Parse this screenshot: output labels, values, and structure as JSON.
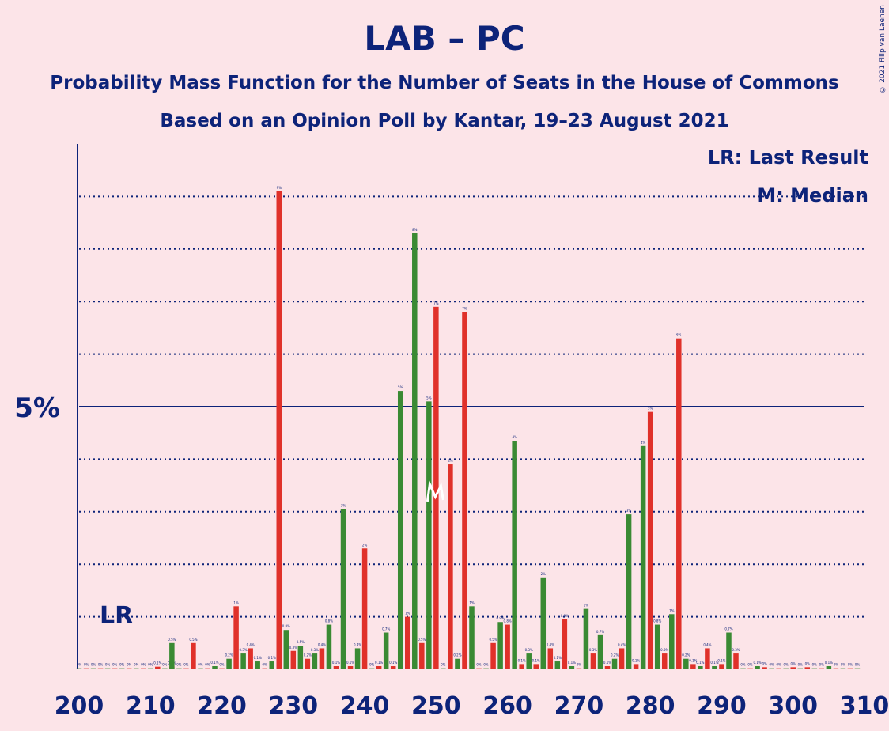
{
  "title": "LAB – PC",
  "subtitle1": "Probability Mass Function for the Number of Seats in the House of Commons",
  "subtitle2": "Based on an Opinion Poll by Kantar, 19–23 August 2021",
  "copyright": "© 2021 Filip van Laenen",
  "legend": {
    "lr": "LR: Last Result",
    "m": "M: Median"
  },
  "colors": {
    "background": "#fce4e8",
    "text": "#0d2379",
    "lab": "#e0312a",
    "pc": "#3a8a33"
  },
  "chart_data": {
    "type": "bar",
    "xlabel": "",
    "ylabel": "",
    "ylim": [
      0,
      9.5
    ],
    "xlim": [
      200,
      310
    ],
    "x_ticks": [
      200,
      210,
      220,
      230,
      240,
      250,
      260,
      270,
      280,
      290,
      300,
      310
    ],
    "y_tick_label": "5%",
    "y_tick_value": 5,
    "gridlines": [
      1,
      2,
      3,
      4,
      6,
      7,
      8,
      9
    ],
    "last_result": {
      "seat": 205,
      "label": "LR"
    },
    "median": {
      "seat": 250,
      "label": "M"
    },
    "series": [
      {
        "name": "LAB",
        "color": "#e0312a",
        "points": [
          [
            201,
            0.02
          ],
          [
            203,
            0.02
          ],
          [
            205,
            0.02
          ],
          [
            207,
            0.02
          ],
          [
            209,
            0.02
          ],
          [
            211,
            0.05
          ],
          [
            213,
            0.05
          ],
          [
            215,
            0.02
          ],
          [
            216,
            0.5
          ],
          [
            218,
            0.02
          ],
          [
            220,
            0.02
          ],
          [
            222,
            1.2
          ],
          [
            224,
            0.4
          ],
          [
            226,
            0.02
          ],
          [
            228,
            9.1
          ],
          [
            230,
            0.35
          ],
          [
            232,
            0.2
          ],
          [
            234,
            0.4
          ],
          [
            236,
            0.06
          ],
          [
            238,
            0.06
          ],
          [
            240,
            2.3
          ],
          [
            242,
            0.06
          ],
          [
            244,
            0.06
          ],
          [
            246,
            1.0
          ],
          [
            248,
            0.5
          ],
          [
            250,
            6.9
          ],
          [
            252,
            3.9
          ],
          [
            254,
            6.8
          ],
          [
            256,
            0.02
          ],
          [
            258,
            0.5
          ],
          [
            260,
            0.85
          ],
          [
            262,
            0.1
          ],
          [
            264,
            0.1
          ],
          [
            266,
            0.4
          ],
          [
            268,
            0.95
          ],
          [
            270,
            0.02
          ],
          [
            272,
            0.3
          ],
          [
            274,
            0.06
          ],
          [
            276,
            0.4
          ],
          [
            278,
            0.1
          ],
          [
            280,
            4.9
          ],
          [
            282,
            0.3
          ],
          [
            284,
            6.3
          ],
          [
            286,
            0.1
          ],
          [
            288,
            0.4
          ],
          [
            290,
            0.1
          ],
          [
            292,
            0.3
          ],
          [
            294,
            0.02
          ],
          [
            296,
            0.04
          ],
          [
            298,
            0.02
          ],
          [
            300,
            0.04
          ],
          [
            302,
            0.04
          ],
          [
            304,
            0.02
          ],
          [
            306,
            0.02
          ],
          [
            308,
            0.02
          ]
        ]
      },
      {
        "name": "PC",
        "color": "#3a8a33",
        "points": [
          [
            200,
            0.02
          ],
          [
            202,
            0.02
          ],
          [
            204,
            0.02
          ],
          [
            206,
            0.02
          ],
          [
            208,
            0.02
          ],
          [
            210,
            0.02
          ],
          [
            212,
            0.02
          ],
          [
            213,
            0.5
          ],
          [
            214,
            0.02
          ],
          [
            217,
            0.02
          ],
          [
            219,
            0.06
          ],
          [
            221,
            0.2
          ],
          [
            223,
            0.3
          ],
          [
            225,
            0.15
          ],
          [
            227,
            0.15
          ],
          [
            229,
            0.75
          ],
          [
            231,
            0.45
          ],
          [
            233,
            0.3
          ],
          [
            235,
            0.85
          ],
          [
            237,
            3.05
          ],
          [
            239,
            0.4
          ],
          [
            241,
            0.02
          ],
          [
            243,
            0.7
          ],
          [
            245,
            5.3
          ],
          [
            247,
            8.3
          ],
          [
            249,
            5.1
          ],
          [
            251,
            0.02
          ],
          [
            253,
            0.2
          ],
          [
            255,
            1.2
          ],
          [
            257,
            0.02
          ],
          [
            259,
            0.9
          ],
          [
            261,
            4.35
          ],
          [
            263,
            0.3
          ],
          [
            265,
            1.75
          ],
          [
            267,
            0.15
          ],
          [
            269,
            0.06
          ],
          [
            271,
            1.15
          ],
          [
            273,
            0.65
          ],
          [
            275,
            0.2
          ],
          [
            277,
            2.95
          ],
          [
            279,
            4.25
          ],
          [
            281,
            0.85
          ],
          [
            283,
            1.05
          ],
          [
            285,
            0.2
          ],
          [
            287,
            0.06
          ],
          [
            289,
            0.06
          ],
          [
            291,
            0.7
          ],
          [
            293,
            0.02
          ],
          [
            295,
            0.06
          ],
          [
            297,
            0.02
          ],
          [
            299,
            0.02
          ],
          [
            301,
            0.02
          ],
          [
            303,
            0.02
          ],
          [
            305,
            0.06
          ],
          [
            307,
            0.02
          ],
          [
            309,
            0.02
          ]
        ]
      }
    ]
  }
}
